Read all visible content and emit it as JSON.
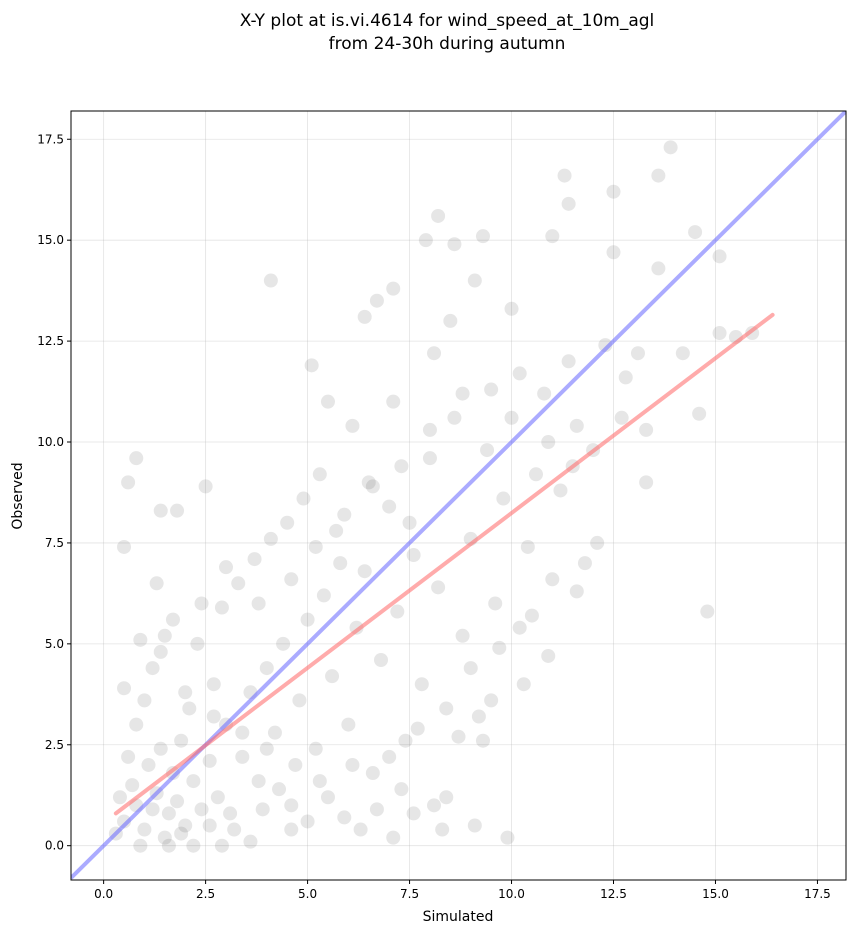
{
  "chart_data": {
    "type": "scatter",
    "title_line1": "X-Y plot at is.vi.4614 for wind_speed_at_10m_agl",
    "title_line2": "from 24-30h during autumn",
    "xlabel": "Simulated",
    "ylabel": "Observed",
    "xlim": [
      -0.8,
      18.2
    ],
    "ylim": [
      -0.85,
      18.2
    ],
    "xticks": [
      "0.0",
      "2.5",
      "5.0",
      "7.5",
      "10.0",
      "12.5",
      "15.0",
      "17.5"
    ],
    "yticks": [
      "0.0",
      "2.5",
      "5.0",
      "7.5",
      "10.0",
      "12.5",
      "15.0",
      "17.5"
    ],
    "grid": true,
    "point_color": "#404040",
    "one_to_one_line": {
      "color": "#6666ff",
      "x": [
        -0.8,
        18.2
      ],
      "y": [
        -0.8,
        18.2
      ]
    },
    "fit_line": {
      "color": "#ff6666",
      "x": [
        0.3,
        16.4
      ],
      "y": [
        0.8,
        13.15
      ]
    },
    "points": [
      [
        0.5,
        0.6
      ],
      [
        0.8,
        1.0
      ],
      [
        1.0,
        0.4
      ],
      [
        1.2,
        0.9
      ],
      [
        0.7,
        1.5
      ],
      [
        1.5,
        0.2
      ],
      [
        1.1,
        2.0
      ],
      [
        0.4,
        1.2
      ],
      [
        0.9,
        0.0
      ],
      [
        1.3,
        1.3
      ],
      [
        1.6,
        0.8
      ],
      [
        0.6,
        2.2
      ],
      [
        1.8,
        1.1
      ],
      [
        0.3,
        0.3
      ],
      [
        1.4,
        2.4
      ],
      [
        2.0,
        0.5
      ],
      [
        1.7,
        1.8
      ],
      [
        0.8,
        3.0
      ],
      [
        2.2,
        1.6
      ],
      [
        1.9,
        2.6
      ],
      [
        2.4,
        0.9
      ],
      [
        1.0,
        3.6
      ],
      [
        2.6,
        2.1
      ],
      [
        0.5,
        3.9
      ],
      [
        2.8,
        1.2
      ],
      [
        1.2,
        4.4
      ],
      [
        3.0,
        3.0
      ],
      [
        2.1,
        3.4
      ],
      [
        3.2,
        0.4
      ],
      [
        2.7,
        4.0
      ],
      [
        3.4,
        2.2
      ],
      [
        1.5,
        5.2
      ],
      [
        3.6,
        3.8
      ],
      [
        2.3,
        5.0
      ],
      [
        3.8,
        1.6
      ],
      [
        4.0,
        4.4
      ],
      [
        2.9,
        5.9
      ],
      [
        4.2,
        2.8
      ],
      [
        3.3,
        6.5
      ],
      [
        4.4,
        5.0
      ],
      [
        4.6,
        1.0
      ],
      [
        3.7,
        7.1
      ],
      [
        4.8,
        3.6
      ],
      [
        5.0,
        5.6
      ],
      [
        4.1,
        7.6
      ],
      [
        5.2,
        2.4
      ],
      [
        5.4,
        6.2
      ],
      [
        4.5,
        8.0
      ],
      [
        5.6,
        4.2
      ],
      [
        5.8,
        7.0
      ],
      [
        4.9,
        8.6
      ],
      [
        6.0,
        3.0
      ],
      [
        6.2,
        5.4
      ],
      [
        5.3,
        9.2
      ],
      [
        6.4,
        6.8
      ],
      [
        6.6,
        1.8
      ],
      [
        5.7,
        7.8
      ],
      [
        6.8,
        4.6
      ],
      [
        7.0,
        8.4
      ],
      [
        6.1,
        10.4
      ],
      [
        7.2,
        5.8
      ],
      [
        7.4,
        2.6
      ],
      [
        6.5,
        9.0
      ],
      [
        7.6,
        7.2
      ],
      [
        7.8,
        4.0
      ],
      [
        8.0,
        9.6
      ],
      [
        7.1,
        11.0
      ],
      [
        8.2,
        6.4
      ],
      [
        8.4,
        1.2
      ],
      [
        7.5,
        8.0
      ],
      [
        8.6,
        10.6
      ],
      [
        8.8,
        5.2
      ],
      [
        9.0,
        7.6
      ],
      [
        8.1,
        12.2
      ],
      [
        9.2,
        3.2
      ],
      [
        9.4,
        9.8
      ],
      [
        8.5,
        13.0
      ],
      [
        9.6,
        6.0
      ],
      [
        9.8,
        8.6
      ],
      [
        10.0,
        10.6
      ],
      [
        9.1,
        14.0
      ],
      [
        10.2,
        5.4
      ],
      [
        10.4,
        7.4
      ],
      [
        10.6,
        9.2
      ],
      [
        10.8,
        11.2
      ],
      [
        11.0,
        6.6
      ],
      [
        11.2,
        8.8
      ],
      [
        11.4,
        12.0
      ],
      [
        11.6,
        10.4
      ],
      [
        11.8,
        7.0
      ],
      [
        12.0,
        9.8
      ],
      [
        12.3,
        12.4
      ],
      [
        12.5,
        14.7
      ],
      [
        12.8,
        11.6
      ],
      [
        13.1,
        12.2
      ],
      [
        13.3,
        9.0
      ],
      [
        13.6,
        14.3
      ],
      [
        13.9,
        17.3
      ],
      [
        14.6,
        10.7
      ],
      [
        14.8,
        5.8
      ],
      [
        15.1,
        12.7
      ],
      [
        15.5,
        12.6
      ],
      [
        15.9,
        12.7
      ],
      [
        14.5,
        15.2
      ],
      [
        13.6,
        16.6
      ],
      [
        12.5,
        16.2
      ],
      [
        11.3,
        16.6
      ],
      [
        8.2,
        15.6
      ],
      [
        7.9,
        15.0
      ],
      [
        4.1,
        14.0
      ],
      [
        0.5,
        7.4
      ],
      [
        0.6,
        9.0
      ],
      [
        0.8,
        9.6
      ],
      [
        1.4,
        8.3
      ],
      [
        1.8,
        8.3
      ],
      [
        1.3,
        6.5
      ],
      [
        2.5,
        8.9
      ],
      [
        5.1,
        11.9
      ],
      [
        5.5,
        11.0
      ],
      [
        6.4,
        13.1
      ],
      [
        6.7,
        13.5
      ],
      [
        7.1,
        13.8
      ],
      [
        8.6,
        14.9
      ],
      [
        9.3,
        15.1
      ],
      [
        9.9,
        0.2
      ],
      [
        9.1,
        0.5
      ],
      [
        8.3,
        0.4
      ],
      [
        7.6,
        0.8
      ],
      [
        7.1,
        0.2
      ],
      [
        6.3,
        0.4
      ],
      [
        5.0,
        0.6
      ],
      [
        4.6,
        0.4
      ],
      [
        3.6,
        0.1
      ],
      [
        2.9,
        0.0
      ],
      [
        2.2,
        0.0
      ],
      [
        1.6,
        0.0
      ],
      [
        1.9,
        0.3
      ],
      [
        2.6,
        0.5
      ],
      [
        3.1,
        0.8
      ],
      [
        3.9,
        0.9
      ],
      [
        4.3,
        1.4
      ],
      [
        5.5,
        1.2
      ],
      [
        5.9,
        0.7
      ],
      [
        6.7,
        0.9
      ],
      [
        7.3,
        1.4
      ],
      [
        8.1,
        1.0
      ],
      [
        8.7,
        2.7
      ],
      [
        9.3,
        2.6
      ],
      [
        9.5,
        3.6
      ],
      [
        10.3,
        4.0
      ],
      [
        10.9,
        4.7
      ],
      [
        11.6,
        6.3
      ],
      [
        12.1,
        7.5
      ],
      [
        10.5,
        5.7
      ],
      [
        9.7,
        4.9
      ],
      [
        9.0,
        4.4
      ],
      [
        8.4,
        3.4
      ],
      [
        7.7,
        2.9
      ],
      [
        7.0,
        2.2
      ],
      [
        6.1,
        2.0
      ],
      [
        5.3,
        1.6
      ],
      [
        4.7,
        2.0
      ],
      [
        4.0,
        2.4
      ],
      [
        3.4,
        2.8
      ],
      [
        2.7,
        3.2
      ],
      [
        2.0,
        3.8
      ],
      [
        1.4,
        4.8
      ],
      [
        0.9,
        5.1
      ],
      [
        1.7,
        5.6
      ],
      [
        2.4,
        6.0
      ],
      [
        3.0,
        6.9
      ],
      [
        3.8,
        6.0
      ],
      [
        4.6,
        6.6
      ],
      [
        5.2,
        7.4
      ],
      [
        5.9,
        8.2
      ],
      [
        6.6,
        8.9
      ],
      [
        7.3,
        9.4
      ],
      [
        8.0,
        10.3
      ],
      [
        8.8,
        11.2
      ],
      [
        9.5,
        11.3
      ],
      [
        10.2,
        11.7
      ],
      [
        10.9,
        10.0
      ],
      [
        11.5,
        9.4
      ],
      [
        12.7,
        10.6
      ],
      [
        13.3,
        10.3
      ],
      [
        14.2,
        12.2
      ],
      [
        15.1,
        14.6
      ],
      [
        10.0,
        13.3
      ],
      [
        11.0,
        15.1
      ],
      [
        11.4,
        15.9
      ]
    ]
  }
}
